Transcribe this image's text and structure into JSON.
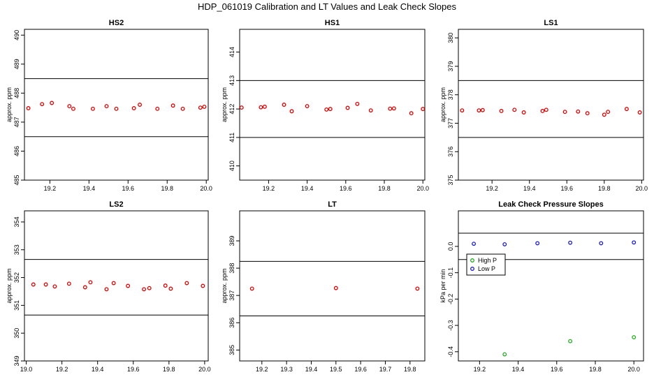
{
  "page_title": "HDP_061019  Calibration and LT Values and Leak Check Slopes",
  "chart_data": [
    {
      "type": "scatter",
      "title": "HS2",
      "ylabel": "approx. ppm",
      "xlim": [
        19.07,
        20.01
      ],
      "ylim": [
        485,
        490.2
      ],
      "x_ticks": [
        19.2,
        19.4,
        19.6,
        19.8,
        20.0
      ],
      "x_tick_labels": [
        "19.2",
        "19.4",
        "19.6",
        "19.8",
        "20.0"
      ],
      "y_ticks": [
        485,
        486,
        487,
        488,
        489,
        490
      ],
      "y_tick_labels": [
        "485",
        "486",
        "487",
        "488",
        "489",
        "490"
      ],
      "hlines": [
        486.5,
        488.5
      ],
      "point_color": "#dd0000",
      "x": [
        19.09,
        19.16,
        19.21,
        19.3,
        19.32,
        19.42,
        19.49,
        19.54,
        19.63,
        19.66,
        19.75,
        19.83,
        19.88,
        19.97,
        19.99
      ],
      "y": [
        487.48,
        487.62,
        487.66,
        487.55,
        487.46,
        487.46,
        487.55,
        487.46,
        487.48,
        487.6,
        487.46,
        487.57,
        487.46,
        487.5,
        487.53
      ]
    },
    {
      "type": "scatter",
      "title": "HS1",
      "ylabel": "approx. ppm",
      "xlim": [
        19.05,
        20.01
      ],
      "ylim": [
        409.5,
        414.8
      ],
      "x_ticks": [
        19.2,
        19.4,
        19.6,
        19.8,
        20.0
      ],
      "x_tick_labels": [
        "19.2",
        "19.4",
        "19.6",
        "19.8",
        "20.0"
      ],
      "y_ticks": [
        410,
        411,
        412,
        413,
        414
      ],
      "y_tick_labels": [
        "410",
        "411",
        "412",
        "413",
        "414"
      ],
      "hlines": [
        411,
        413
      ],
      "point_color": "#dd0000",
      "x": [
        19.06,
        19.16,
        19.18,
        19.28,
        19.32,
        19.4,
        19.5,
        19.52,
        19.61,
        19.66,
        19.73,
        19.83,
        19.85,
        19.94,
        20.0
      ],
      "y": [
        412.05,
        412.06,
        412.08,
        412.15,
        411.92,
        412.1,
        411.98,
        412.0,
        412.04,
        412.18,
        411.95,
        412.01,
        412.02,
        411.85,
        412.0
      ]
    },
    {
      "type": "scatter",
      "title": "LS1",
      "ylabel": "approx. ppm",
      "xlim": [
        19.02,
        20.01
      ],
      "ylim": [
        375,
        380.3
      ],
      "x_ticks": [
        19.2,
        19.4,
        19.6,
        19.8,
        20.0
      ],
      "x_tick_labels": [
        "19.2",
        "19.4",
        "19.6",
        "19.8",
        "20.0"
      ],
      "y_ticks": [
        375,
        376,
        377,
        378,
        379,
        380
      ],
      "y_tick_labels": [
        "375",
        "376",
        "377",
        "378",
        "379",
        "380"
      ],
      "hlines": [
        376.5,
        378.5
      ],
      "point_color": "#dd0000",
      "x": [
        19.04,
        19.13,
        19.15,
        19.25,
        19.32,
        19.37,
        19.47,
        19.49,
        19.59,
        19.66,
        19.71,
        19.8,
        19.82,
        19.92,
        19.99
      ],
      "y": [
        377.45,
        377.45,
        377.46,
        377.43,
        377.47,
        377.38,
        377.43,
        377.47,
        377.4,
        377.41,
        377.35,
        377.3,
        377.4,
        377.5,
        377.38
      ]
    },
    {
      "type": "scatter",
      "title": "LS2",
      "ylabel": "approx. ppm",
      "xlim": [
        18.99,
        20.02
      ],
      "ylim": [
        349,
        354.4
      ],
      "x_ticks": [
        19.0,
        19.2,
        19.4,
        19.6,
        19.8,
        20.0
      ],
      "x_tick_labels": [
        "19.0",
        "19.2",
        "19.4",
        "19.6",
        "19.8",
        "20.0"
      ],
      "y_ticks": [
        349,
        350,
        351,
        352,
        353,
        354
      ],
      "y_tick_labels": [
        "349",
        "350",
        "351",
        "352",
        "353",
        "354"
      ],
      "hlines": [
        350.65,
        352.65
      ],
      "point_color": "#dd0000",
      "x": [
        19.04,
        19.11,
        19.16,
        19.24,
        19.33,
        19.36,
        19.45,
        19.49,
        19.57,
        19.66,
        19.69,
        19.78,
        19.81,
        19.9,
        19.99
      ],
      "y": [
        351.75,
        351.75,
        351.68,
        351.78,
        351.65,
        351.83,
        351.58,
        351.8,
        351.7,
        351.58,
        351.62,
        351.71,
        351.6,
        351.8,
        351.7
      ]
    },
    {
      "type": "scatter",
      "title": "LT",
      "ylabel": "approx. ppm",
      "xlim": [
        19.11,
        19.86
      ],
      "ylim": [
        384.6,
        390.1
      ],
      "x_ticks": [
        19.2,
        19.3,
        19.4,
        19.5,
        19.6,
        19.7,
        19.8
      ],
      "x_tick_labels": [
        "19.2",
        "19.3",
        "19.4",
        "19.5",
        "19.6",
        "19.7",
        "19.8"
      ],
      "y_ticks": [
        385,
        386,
        387,
        388,
        389
      ],
      "y_tick_labels": [
        "385",
        "386",
        "387",
        "388",
        "389"
      ],
      "hlines": [
        386.25,
        388.25
      ],
      "point_color": "#dd0000",
      "x": [
        19.16,
        19.5,
        19.83
      ],
      "y": [
        387.25,
        387.27,
        387.25
      ]
    },
    {
      "type": "scatter",
      "title": "Leak Check Pressure Slopes",
      "ylabel": "kPa per min",
      "xlim": [
        19.09,
        20.05
      ],
      "ylim": [
        -0.435,
        0.135
      ],
      "x_ticks": [
        19.2,
        19.4,
        19.6,
        19.8,
        20.0
      ],
      "x_tick_labels": [
        "19.2",
        "19.4",
        "19.6",
        "19.8",
        "20.0"
      ],
      "y_ticks": [
        -0.4,
        -0.3,
        -0.2,
        -0.1,
        0.0
      ],
      "y_tick_labels": [
        "-0.4",
        "-0.3",
        "-0.2",
        "-0.1",
        "0.0"
      ],
      "hlines": [
        0.05,
        -0.05
      ],
      "legend": {
        "placement": "upper-left",
        "entries": [
          {
            "label": "High P",
            "color": "#22aa22"
          },
          {
            "label": "Low P",
            "color": "#1a1acc"
          }
        ]
      },
      "series": [
        {
          "name": "High P",
          "color": "#22aa22",
          "x": [
            19.33,
            19.67,
            20.0
          ],
          "y": [
            -0.41,
            -0.36,
            -0.345
          ]
        },
        {
          "name": "Low P",
          "color": "#1a1acc",
          "x": [
            19.17,
            19.33,
            19.5,
            19.67,
            19.83,
            20.0
          ],
          "y": [
            0.01,
            0.008,
            0.012,
            0.014,
            0.012,
            0.015
          ]
        }
      ]
    }
  ]
}
